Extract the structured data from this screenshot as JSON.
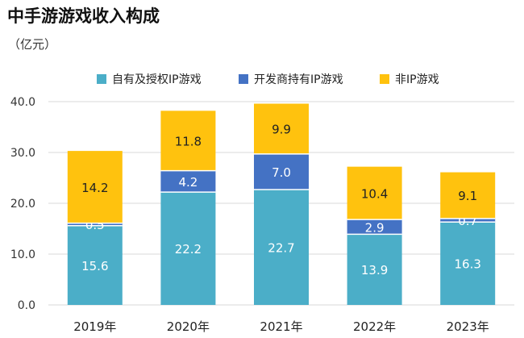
{
  "title": "中手游游戏收入构成",
  "unit": "（亿元）",
  "colors": {
    "series0": "#4BAEC8",
    "series1": "#4472C4",
    "series2": "#FFC20E",
    "grid": "#d9d9d9"
  },
  "chart_data": {
    "type": "bar",
    "stacked": true,
    "categories": [
      "2019年",
      "2020年",
      "2021年",
      "2022年",
      "2023年"
    ],
    "series": [
      {
        "name": "自有及授权IP游戏",
        "values": [
          15.6,
          22.2,
          22.7,
          13.9,
          16.3
        ],
        "labels": [
          "15.6",
          "22.2",
          "22.7",
          "13.9",
          "16.3"
        ]
      },
      {
        "name": "开发商持有IP游戏",
        "values": [
          0.5,
          4.2,
          7.0,
          2.9,
          0.7
        ],
        "labels": [
          "0.5",
          "4.2",
          "7.0",
          "2.9",
          "0.7"
        ]
      },
      {
        "name": "非IP游戏",
        "values": [
          14.2,
          11.8,
          9.9,
          10.4,
          9.1
        ],
        "labels": [
          "14.2",
          "11.8",
          "9.9",
          "10.4",
          "9.1"
        ]
      }
    ],
    "ylim": [
      0,
      40
    ],
    "yticks": [
      "0.0",
      "10.0",
      "20.0",
      "30.0",
      "40.0"
    ],
    "ytick_values": [
      0,
      10,
      20,
      30,
      40
    ],
    "grid": true,
    "legend_position": "top"
  }
}
